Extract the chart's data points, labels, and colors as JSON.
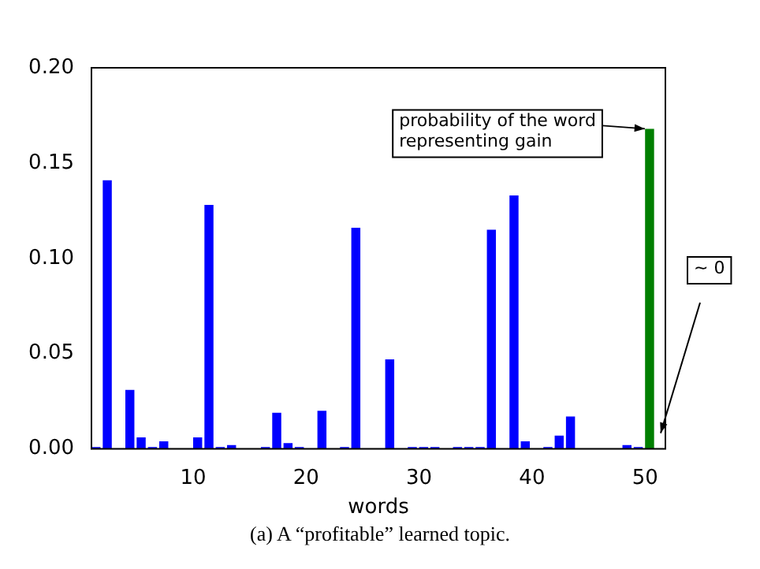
{
  "chart_data": {
    "type": "bar",
    "xlabel": "words",
    "x": [
      1.4,
      2.4,
      3.4,
      4.4,
      5.4,
      6.4,
      7.4,
      8.4,
      9.4,
      10.4,
      11.4,
      12.4,
      13.4,
      14.4,
      15.4,
      16.4,
      17.4,
      18.4,
      19.4,
      20.4,
      21.4,
      22.4,
      23.4,
      24.4,
      25.4,
      26.4,
      27.4,
      28.4,
      29.4,
      30.4,
      31.4,
      32.4,
      33.4,
      34.4,
      35.4,
      36.4,
      37.4,
      38.4,
      39.4,
      40.4,
      41.4,
      42.4,
      43.4,
      44.4,
      45.4,
      46.4,
      47.4,
      48.4,
      49.4,
      50.4,
      51.4
    ],
    "values": [
      0.001,
      0.141,
      0,
      0.031,
      0.006,
      0.001,
      0.004,
      0,
      0,
      0.006,
      0.128,
      0.001,
      0.002,
      0,
      0,
      0.001,
      0.019,
      0.003,
      0.001,
      0,
      0.02,
      0,
      0.001,
      0.116,
      0,
      0,
      0.047,
      0,
      0.001,
      0.001,
      0.001,
      0,
      0.001,
      0.001,
      0.001,
      0.115,
      0,
      0.133,
      0.004,
      0,
      0.001,
      0.007,
      0.017,
      0,
      0,
      0,
      0,
      0.002,
      0.001,
      0.168,
      0
    ],
    "colors": [
      "#0000ff",
      "#0000ff",
      "#0000ff",
      "#0000ff",
      "#0000ff",
      "#0000ff",
      "#0000ff",
      "#0000ff",
      "#0000ff",
      "#0000ff",
      "#0000ff",
      "#0000ff",
      "#0000ff",
      "#0000ff",
      "#0000ff",
      "#0000ff",
      "#0000ff",
      "#0000ff",
      "#0000ff",
      "#0000ff",
      "#0000ff",
      "#0000ff",
      "#0000ff",
      "#0000ff",
      "#0000ff",
      "#0000ff",
      "#0000ff",
      "#0000ff",
      "#0000ff",
      "#0000ff",
      "#0000ff",
      "#0000ff",
      "#0000ff",
      "#0000ff",
      "#0000ff",
      "#0000ff",
      "#0000ff",
      "#0000ff",
      "#0000ff",
      "#0000ff",
      "#0000ff",
      "#0000ff",
      "#0000ff",
      "#0000ff",
      "#0000ff",
      "#0000ff",
      "#0000ff",
      "#0000ff",
      "#0000ff",
      "#007f00",
      "#0000ff"
    ],
    "xlim": [
      1,
      51.8
    ],
    "xticks": [
      10,
      20,
      30,
      40,
      50
    ],
    "ylim": [
      0,
      0.2
    ],
    "yticks": [
      {
        "value": 0,
        "label": "0.00"
      },
      {
        "value": 0.05,
        "label": "0.05"
      },
      {
        "value": 0.1,
        "label": "0.10"
      },
      {
        "value": 0.15,
        "label": "0.15"
      },
      {
        "value": 0.2,
        "label": "0.20"
      }
    ],
    "grid": false,
    "legend": false,
    "annotations": [
      {
        "text": "probability of the word\nrepresenting gain",
        "x": 50.4,
        "y": 0.168
      },
      "~ 0",
      "(a) A “profitable” learned topic."
    ]
  }
}
